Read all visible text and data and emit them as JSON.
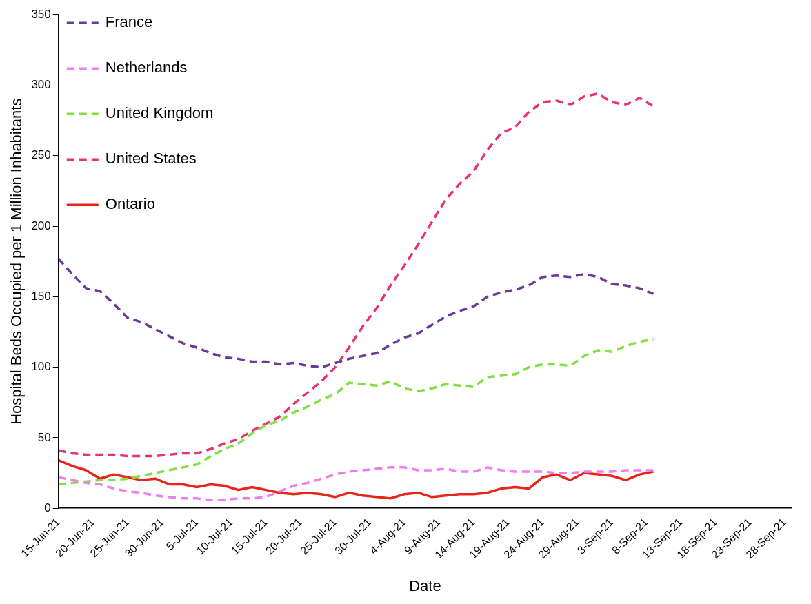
{
  "chart_data": {
    "type": "line",
    "xlabel": "Date",
    "ylabel": "Hospital Beds Occupied per 1 Million Inhabitants",
    "x": [
      "--06-15",
      "--06-17",
      "--06-19",
      "--06-21",
      "--06-23",
      "--06-25",
      "--06-27",
      "--06-29",
      "--07-01",
      "--07-03",
      "--07-05",
      "--07-07",
      "--07-09",
      "--07-11",
      "--07-13",
      "--07-15",
      "--07-17",
      "--07-19",
      "--07-21",
      "--07-23",
      "--07-25",
      "--07-27",
      "--07-29",
      "--07-31",
      "--08-02",
      "--08-04",
      "--08-06",
      "--08-08",
      "--08-10",
      "--08-12",
      "--08-14",
      "--08-16",
      "--08-18",
      "--08-20",
      "--08-22",
      "--08-24",
      "--08-26",
      "--08-28",
      "--08-30",
      "--09-01",
      "--09-03",
      "--09-05",
      "--09-07",
      "--09-09"
    ],
    "series": [
      {
        "name": "France",
        "color": "#6a3a9a",
        "line_style": "dashed",
        "values": [
          177,
          166,
          156,
          154,
          145,
          135,
          132,
          127,
          122,
          117,
          114,
          110,
          107,
          106,
          104,
          104,
          102,
          103,
          101,
          100,
          103,
          106,
          108,
          110,
          116,
          121,
          124,
          130,
          136,
          140,
          143,
          150,
          153,
          155,
          158,
          164,
          165,
          164,
          166,
          164,
          159,
          158,
          156,
          152
        ]
      },
      {
        "name": "Netherlands",
        "color": "#f07cf0",
        "line_style": "dashed",
        "values": [
          22,
          20,
          18,
          17,
          14,
          12,
          11,
          9,
          8,
          7,
          7,
          6,
          6,
          7,
          7,
          8,
          12,
          16,
          18,
          21,
          24,
          26,
          27,
          28,
          29,
          29,
          27,
          27,
          28,
          26,
          26,
          29,
          27,
          26,
          26,
          26,
          25,
          25,
          26,
          26,
          26,
          27,
          27,
          27
        ]
      },
      {
        "name": "United Kingdom",
        "color": "#80e040",
        "line_style": "dashed",
        "values": [
          17,
          18,
          19,
          20,
          20,
          21,
          23,
          25,
          27,
          29,
          31,
          37,
          42,
          46,
          53,
          59,
          62,
          68,
          72,
          77,
          81,
          89,
          88,
          87,
          90,
          85,
          83,
          85,
          88,
          87,
          86,
          93,
          94,
          95,
          100,
          102,
          102,
          101,
          108,
          112,
          111,
          115,
          118,
          120
        ]
      },
      {
        "name": "United States",
        "color": "#e8336e",
        "line_style": "dashed",
        "values": [
          41,
          39,
          38,
          38,
          38,
          37,
          37,
          37,
          38,
          39,
          39,
          42,
          46,
          49,
          55,
          60,
          65,
          74,
          82,
          90,
          100,
          114,
          129,
          142,
          158,
          172,
          187,
          203,
          219,
          230,
          239,
          254,
          266,
          270,
          281,
          288,
          289,
          286,
          292,
          294,
          288,
          286,
          291,
          285
        ]
      },
      {
        "name": "Ontario",
        "color": "#e8251a",
        "line_style": "solid",
        "values": [
          34,
          30,
          27,
          21,
          24,
          22,
          20,
          21,
          17,
          17,
          15,
          17,
          16,
          13,
          15,
          13,
          11,
          10,
          11,
          10,
          8,
          11,
          9,
          8,
          7,
          10,
          11,
          8,
          9,
          10,
          10,
          11,
          14,
          15,
          14,
          22,
          24,
          20,
          25,
          24,
          23,
          20,
          24,
          26
        ]
      }
    ],
    "xlim": [
      "--06-15",
      "--09-29"
    ],
    "xticks": [
      {
        "value": "--06-15",
        "label": "15-Jun-21"
      },
      {
        "value": "--06-20",
        "label": "20-Jun-21"
      },
      {
        "value": "--06-25",
        "label": "25-Jun-21"
      },
      {
        "value": "--06-30",
        "label": "30-Jun-21"
      },
      {
        "value": "--07-05",
        "label": "5-Jul-21"
      },
      {
        "value": "--07-10",
        "label": "10-Jul-21"
      },
      {
        "value": "--07-15",
        "label": "15-Jul-21"
      },
      {
        "value": "--07-20",
        "label": "20-Jul-21"
      },
      {
        "value": "--07-25",
        "label": "25-Jul-21"
      },
      {
        "value": "--07-30",
        "label": "30-Jul-21"
      },
      {
        "value": "--08-04",
        "label": "4-Aug-21"
      },
      {
        "value": "--08-09",
        "label": "9-Aug-21"
      },
      {
        "value": "--08-14",
        "label": "14-Aug-21"
      },
      {
        "value": "--08-19",
        "label": "19-Aug-21"
      },
      {
        "value": "--08-24",
        "label": "24-Aug-21"
      },
      {
        "value": "--08-29",
        "label": "29-Aug-21"
      },
      {
        "value": "--09-03",
        "label": "3-Sep-21"
      },
      {
        "value": "--09-08",
        "label": "8-Sep-21"
      },
      {
        "value": "--09-13",
        "label": "13-Sep-21"
      },
      {
        "value": "--09-18",
        "label": "18-Sep-21"
      },
      {
        "value": "--09-23",
        "label": "23-Sep-21"
      },
      {
        "value": "--09-28",
        "label": "28-Sep-21"
      }
    ],
    "ylim": [
      0,
      350
    ],
    "yticks": [
      0,
      50,
      100,
      150,
      200,
      250,
      300,
      350
    ],
    "grid": false,
    "legend": "top left",
    "marker": "none"
  }
}
